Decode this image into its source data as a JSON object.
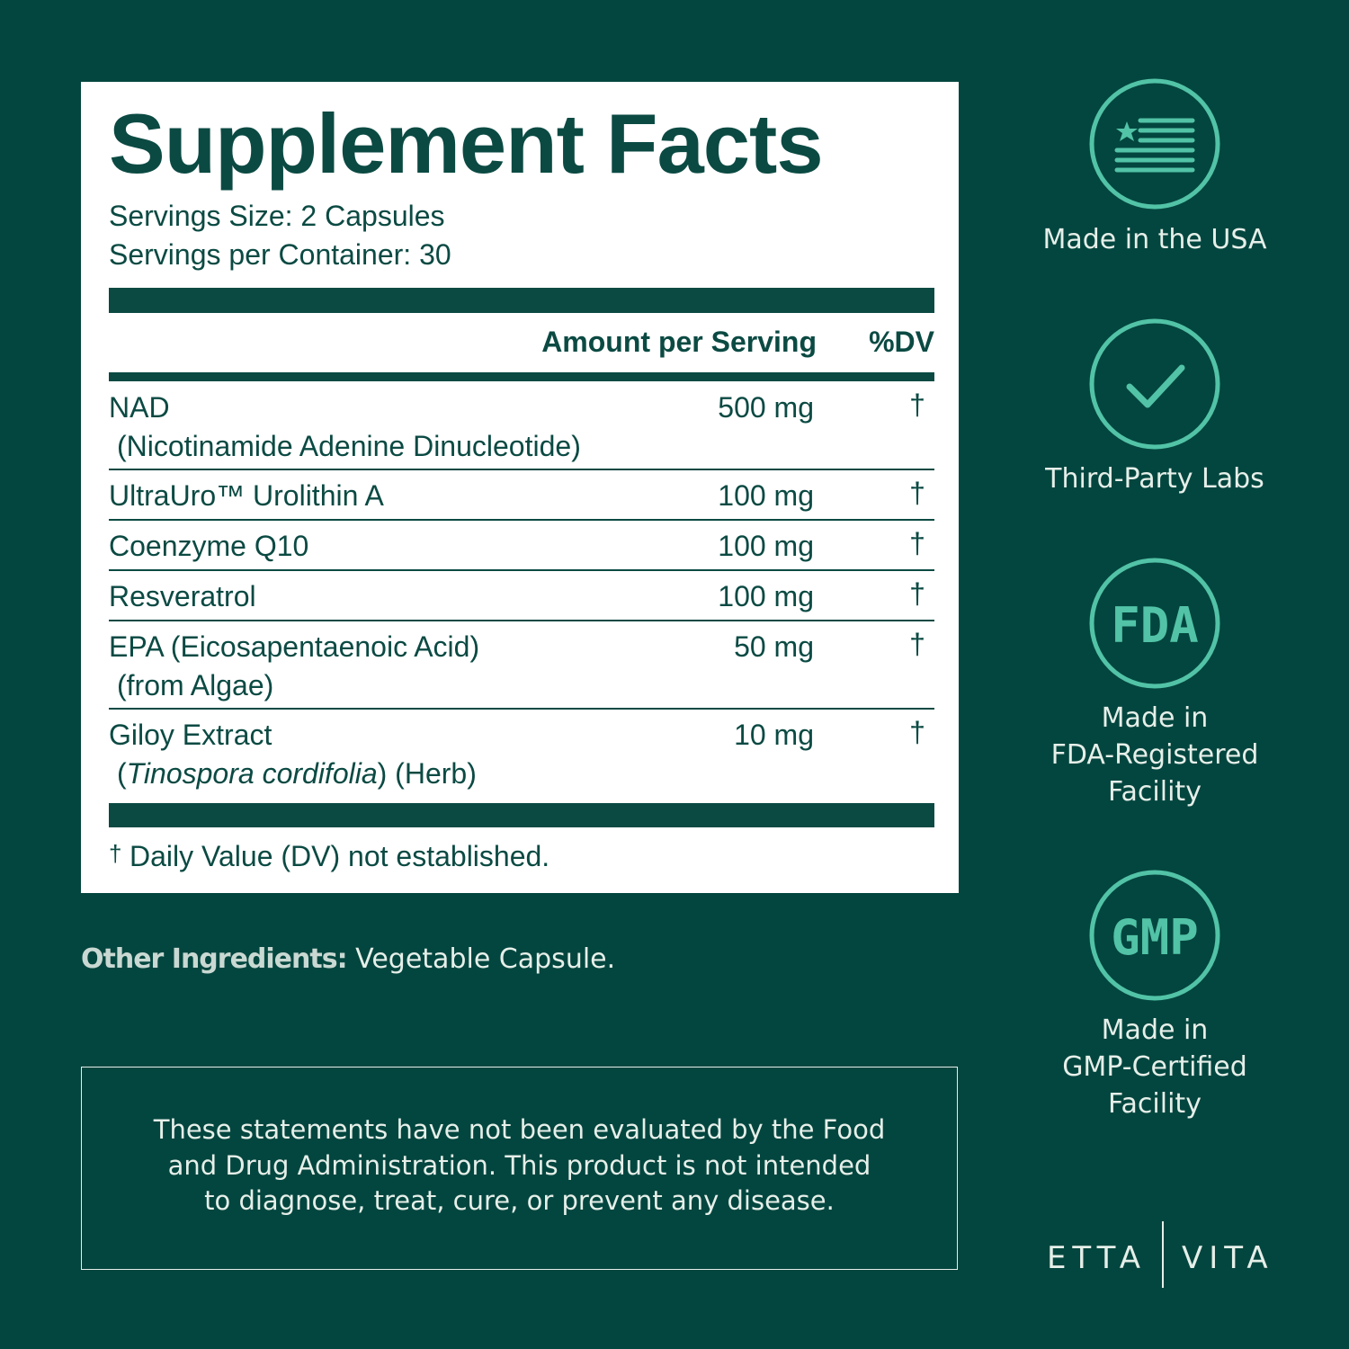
{
  "panel": {
    "title": "Supplement Facts",
    "serving_size": "Servings Size: 2 Capsules",
    "servings_per_container": "Servings per Container: 30",
    "header": {
      "amount": "Amount per Serving",
      "dv": "%DV"
    },
    "rows": [
      {
        "name": "NAD",
        "sub": "(Nicotinamide Adenine Dinucleotide)",
        "amount": "500 mg",
        "dv": "†"
      },
      {
        "name": "UltraUro™ Urolithin A",
        "amount": "100 mg",
        "dv": "†"
      },
      {
        "name": "Coenzyme Q10",
        "amount": "100 mg",
        "dv": "†"
      },
      {
        "name": "Resveratrol",
        "amount": "100 mg",
        "dv": "†"
      },
      {
        "name": "EPA (Eicosapentaenoic Acid)",
        "sub": "(from Algae)",
        "amount": "50 mg",
        "dv": "†"
      },
      {
        "name": "Giloy Extract",
        "sub": "(",
        "sub_italic": "Tinospora cordifolia",
        "sub_after": ") (Herb)",
        "amount": "10 mg",
        "dv": "†"
      }
    ],
    "footnote": {
      "mark": "†",
      "text": "Daily Value (DV) not established."
    }
  },
  "other_ingredients": {
    "label": "Other Ingredients:",
    "text": "Vegetable Capsule."
  },
  "disclaimer": [
    "These statements have not been evaluated by the Food",
    "and Drug Administration. This product is not intended",
    "to diagnose, treat, cure, or prevent any disease."
  ],
  "badges": [
    {
      "caption": [
        "Made in the USA"
      ]
    },
    {
      "caption": [
        "Third-Party Labs"
      ]
    },
    {
      "icon_text": "FDA",
      "caption": [
        "Made in",
        "FDA-Registered",
        "Facility"
      ]
    },
    {
      "icon_text": "GMP",
      "caption": [
        "Made in",
        "GMP-Certified",
        "Facility"
      ]
    }
  ],
  "brand": {
    "left": "ETTA",
    "right": "VITA"
  }
}
